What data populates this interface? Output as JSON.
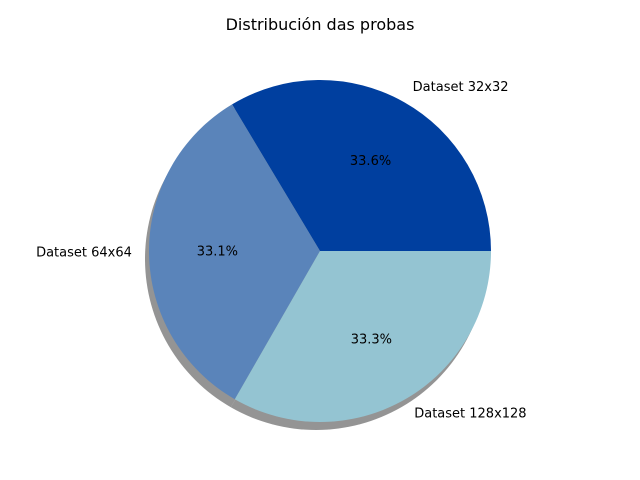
{
  "chart_data": {
    "type": "pie",
    "title": "Distribución das probas",
    "shadow": true,
    "start_angle_deg": 0,
    "direction": "counterclockwise",
    "slices": [
      {
        "label": "Dataset 32x32",
        "value": 33.6,
        "pct_label": "33.6%",
        "color": "#003f9f"
      },
      {
        "label": "Dataset 64x64",
        "value": 33.1,
        "pct_label": "33.1%",
        "color": "#5a84ba"
      },
      {
        "label": "Dataset 128x128",
        "value": 33.3,
        "pct_label": "33.3%",
        "color": "#94c4d2"
      }
    ],
    "shadow_color": "#666666"
  }
}
